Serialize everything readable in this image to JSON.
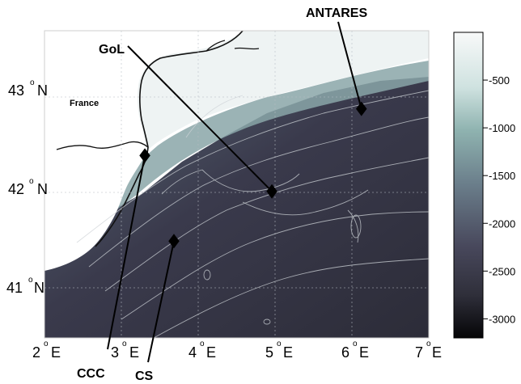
{
  "map": {
    "region_label": "France",
    "longitude_labels": [
      {
        "value": "2",
        "unit": "E"
      },
      {
        "value": "3",
        "unit": "E"
      },
      {
        "value": "4",
        "unit": "E"
      },
      {
        "value": "5",
        "unit": "E"
      },
      {
        "value": "6",
        "unit": "E"
      },
      {
        "value": "7",
        "unit": "E"
      }
    ],
    "latitude_labels": [
      {
        "value": "43",
        "unit": "N"
      },
      {
        "value": "42",
        "unit": "N"
      },
      {
        "value": "41",
        "unit": "N"
      }
    ],
    "degree_symbol": "o",
    "sites": [
      {
        "name": "ANTARES",
        "lon": 6.12,
        "lat": 42.8
      },
      {
        "name": "GoL",
        "lon": 4.95,
        "lat": 41.97
      },
      {
        "name": "CCC",
        "lon": 3.29,
        "lat": 42.33
      },
      {
        "name": "CS",
        "lon": 3.67,
        "lat": 41.47
      }
    ]
  },
  "colorbar": {
    "tick_labels": [
      "-500",
      "-1000",
      "-1500",
      "-2000",
      "-2500",
      "-3000"
    ],
    "depth_range": [
      -3200,
      0
    ],
    "colors": {
      "shallow": "#f6f8f8",
      "mid": "#7fa4a2",
      "deep": "#31313f",
      "deepest": "#0b0b0e"
    }
  }
}
